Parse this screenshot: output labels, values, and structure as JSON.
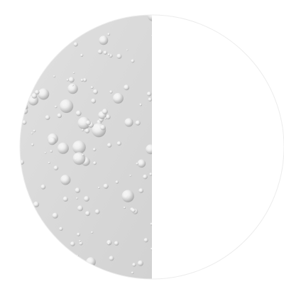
{
  "swatch": {
    "left_half": {
      "texture": "water-droplets",
      "base_color": "#d9d9d9",
      "highlight_color": "#f4f4f4",
      "shadow_color": "#b8b8b8"
    },
    "right_half": {
      "texture": "plain",
      "base_color": "#ffffff"
    },
    "outline_color": "#ececec"
  }
}
